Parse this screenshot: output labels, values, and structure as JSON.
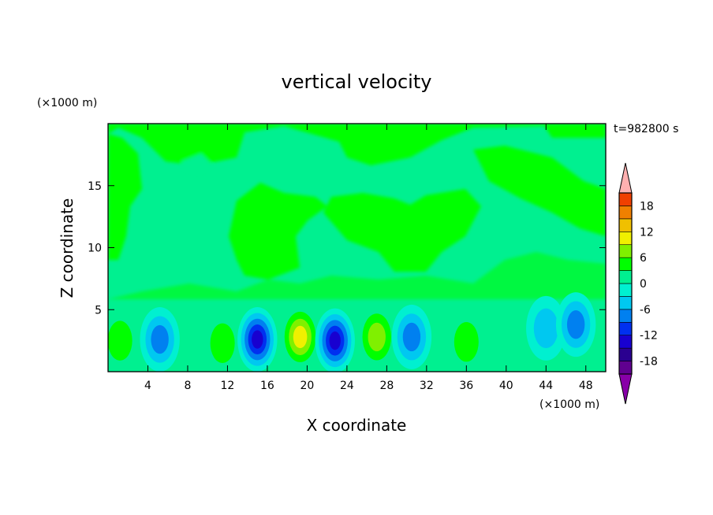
{
  "chart_data": {
    "type": "heatmap",
    "title": "vertical velocity",
    "xlabel": "X coordinate",
    "ylabel": "Z coordinate",
    "x_units": "(×1000 m)",
    "y_units": "(×1000 m)",
    "time_label": "t=982800 s",
    "xlim": [
      0,
      50
    ],
    "ylim": [
      0,
      20
    ],
    "x_ticks": [
      4,
      8,
      12,
      16,
      20,
      24,
      28,
      32,
      36,
      40,
      44,
      48
    ],
    "y_ticks": [
      5,
      10,
      15
    ],
    "colorbar": {
      "levels": [
        -21,
        -18,
        -15,
        -12,
        -9,
        -6,
        -3,
        0,
        3,
        6,
        9,
        12,
        15,
        18,
        21
      ],
      "tick_labels": [
        18,
        12,
        6,
        0,
        -6,
        -12,
        -18
      ],
      "colors": [
        "#600090",
        "#2a0090",
        "#1800d0",
        "#0030f0",
        "#0080f0",
        "#00c8f0",
        "#00f0d0",
        "#00f090",
        "#00ff00",
        "#80f000",
        "#f0f000",
        "#f0c000",
        "#f08000",
        "#f04000",
        "#f00000",
        "#ffa8a8"
      ],
      "low_color": "#8800a8",
      "high_color": "#ffb0b0"
    },
    "features": [
      {
        "x": 1.2,
        "z": 2.5,
        "w": 6
      },
      {
        "x": 5.2,
        "z": 2.6,
        "w": -8
      },
      {
        "x": 11.5,
        "z": 2.3,
        "w": 6
      },
      {
        "x": 15.0,
        "z": 2.6,
        "w": -14
      },
      {
        "x": 19.3,
        "z": 2.8,
        "w": 12
      },
      {
        "x": 22.8,
        "z": 2.5,
        "w": -14
      },
      {
        "x": 27.0,
        "z": 2.8,
        "w": 8
      },
      {
        "x": 30.5,
        "z": 2.8,
        "w": -9
      },
      {
        "x": 36.0,
        "z": 2.4,
        "w": 7
      },
      {
        "x": 44.0,
        "z": 3.5,
        "w": -5
      },
      {
        "x": 47.0,
        "z": 3.8,
        "w": -10
      }
    ]
  }
}
